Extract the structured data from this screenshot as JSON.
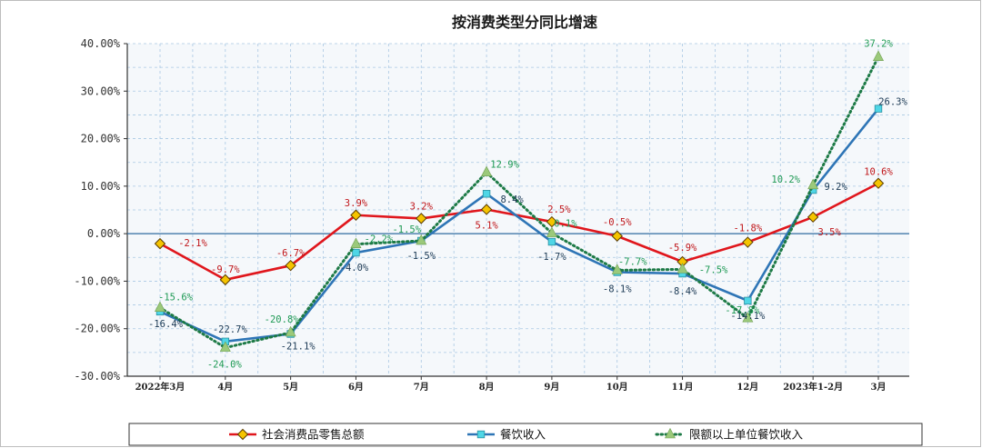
{
  "chart_data": {
    "type": "line",
    "title": "按消费类型分同比增速",
    "categories": [
      "2022年3月",
      "4月",
      "5月",
      "6月",
      "7月",
      "8月",
      "9月",
      "10月",
      "11月",
      "12月",
      "2023年1-2月",
      "3月"
    ],
    "yticks": [
      "40.00%",
      "30.00%",
      "20.00%",
      "10.00%",
      "0.00%",
      "-10.00%",
      "-20.00%",
      "-30.00%"
    ],
    "ylim": [
      -30,
      40
    ],
    "grid": true,
    "legend_position": "bottom",
    "series": [
      {
        "name": "社会消费品零售总额",
        "color": "#e0161c",
        "line_style": "solid",
        "marker": "diamond",
        "marker_color": "#f5c400",
        "values": [
          -2.1,
          -9.7,
          -6.7,
          3.9,
          3.2,
          5.1,
          2.5,
          -0.5,
          -5.9,
          -1.8,
          3.5,
          10.6
        ],
        "labels": [
          "-2.1%",
          "-9.7%",
          "-6.7%",
          "3.9%",
          "3.2%",
          "5.1%",
          "2.5%",
          "-0.5%",
          "-5.9%",
          "-1.8%",
          "3.5%",
          "10.6%"
        ]
      },
      {
        "name": "餐饮收入",
        "color": "#2e75b6",
        "line_style": "solid",
        "marker": "square",
        "marker_color": "#4fd6e6",
        "values": [
          -16.4,
          -22.7,
          -21.1,
          -4.0,
          -1.5,
          8.4,
          -1.7,
          -8.1,
          -8.4,
          -14.1,
          9.2,
          26.3
        ],
        "labels": [
          "-16.4%",
          "-22.7%",
          "-21.1%",
          "-4.0%",
          "-1.5%",
          "8.4%",
          "-1.7%",
          "-8.1%",
          "-8.4%",
          "-14.1%",
          "9.2%",
          "26.3%"
        ]
      },
      {
        "name": "限额以上单位餐饮收入",
        "color": "#1d7a46",
        "line_style": "dotted",
        "marker": "triangle",
        "marker_color": "#9bc97a",
        "values": [
          -15.6,
          -24.0,
          -20.8,
          -2.2,
          -1.5,
          12.9,
          0.1,
          -7.7,
          -7.5,
          -17.8,
          10.2,
          37.2
        ],
        "labels": [
          "-15.6%",
          "-24.0%",
          "-20.8%",
          "-2.2%",
          "-1.5%",
          "12.9%",
          "0.1%",
          "-7.7%",
          "-7.5%",
          "-17.8%",
          "10.2%",
          "37.2%"
        ]
      }
    ]
  }
}
